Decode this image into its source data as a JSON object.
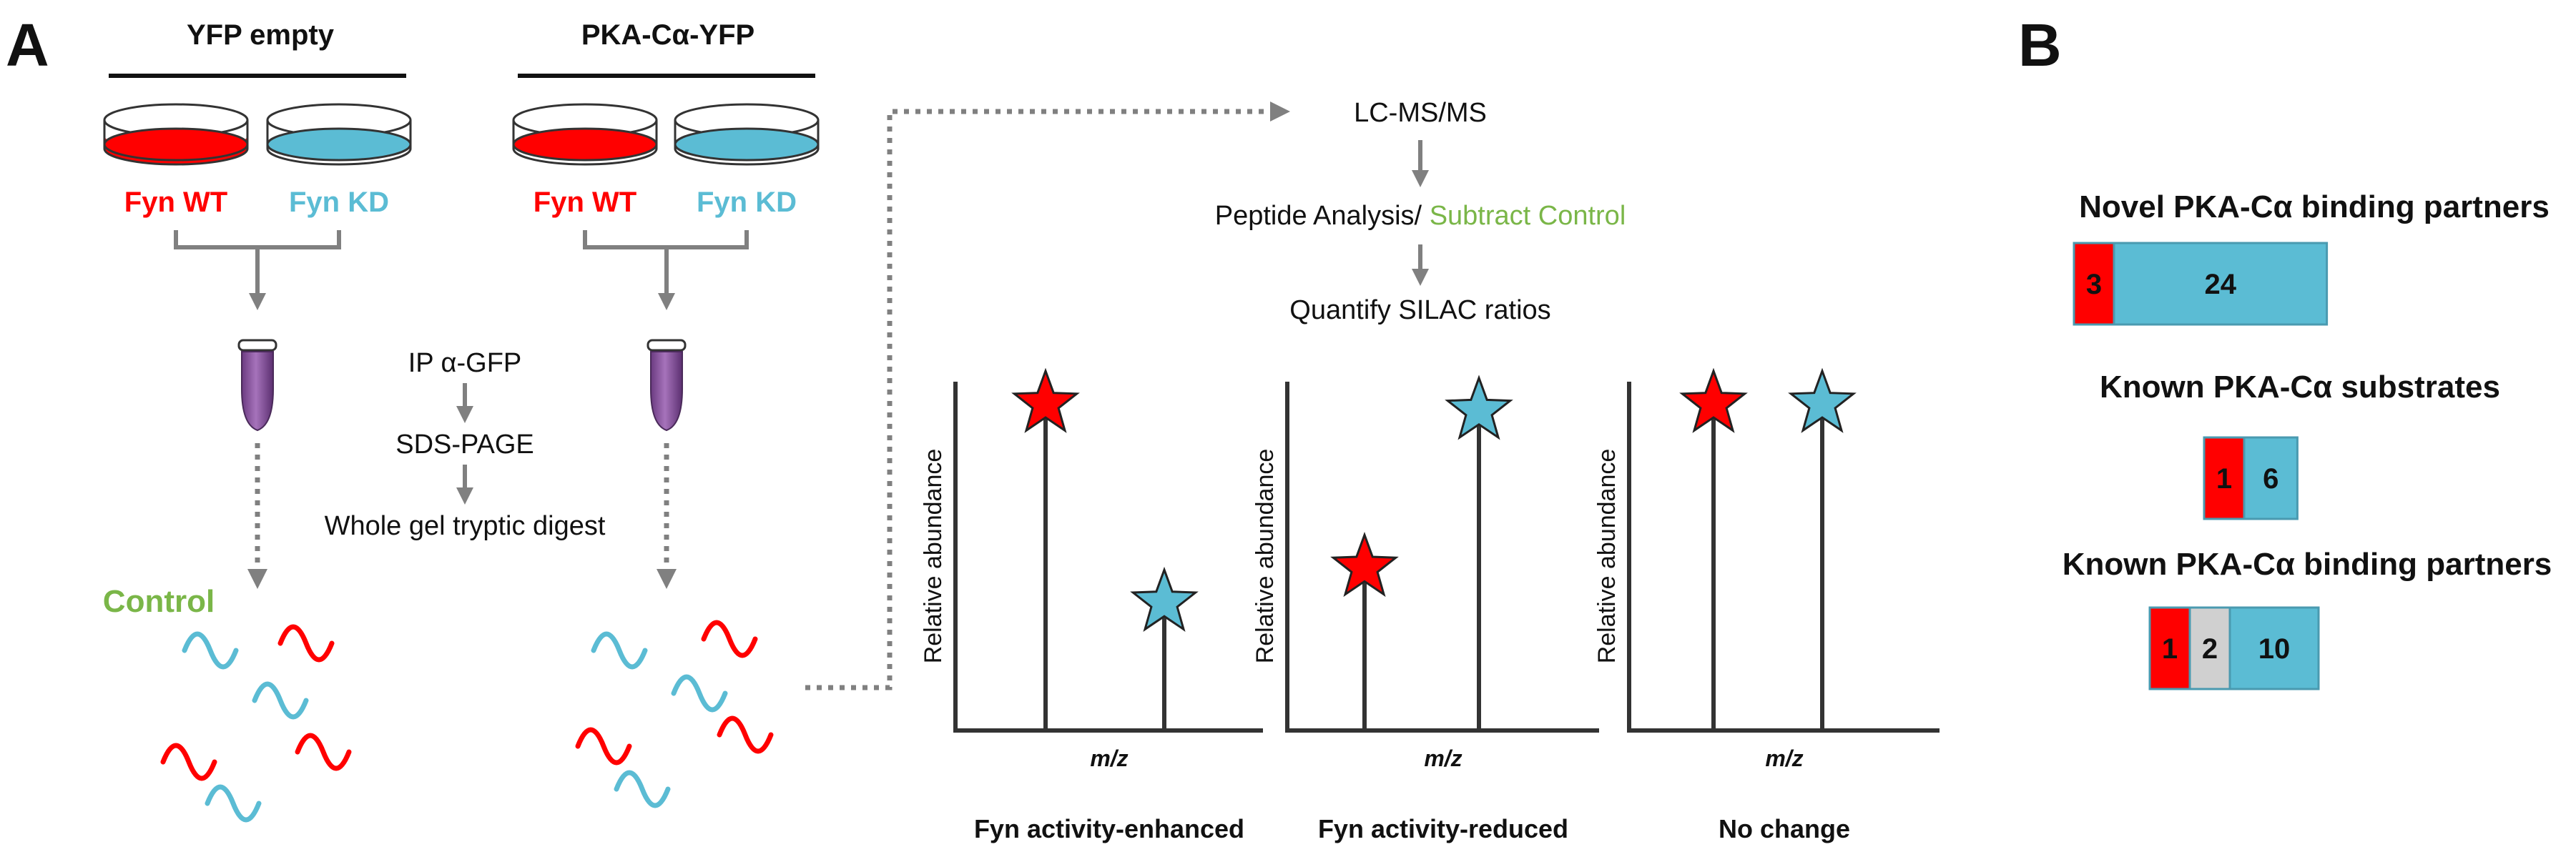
{
  "colors": {
    "red": "#ff0000",
    "blue": "#5bbcd4",
    "green": "#7ab648",
    "purple": "#8e54a0",
    "gray_line": "#808080",
    "dark": "#333333",
    "light_gray": "#d0d0d0"
  },
  "panel_a": {
    "label": "A",
    "groups": [
      {
        "title": "YFP empty",
        "left_label": "Fyn WT",
        "right_label": "Fyn KD"
      },
      {
        "title": "PKA-Cα-YFP",
        "left_label": "Fyn WT",
        "right_label": "Fyn KD"
      }
    ],
    "control_label": "Control",
    "steps_middle": [
      "IP α-GFP",
      "SDS-PAGE",
      "Whole gel tryptic digest"
    ],
    "steps_right": {
      "ms": "LC-MS/MS",
      "analysis_prefix": "Peptide Analysis/ ",
      "analysis_highlight": "Subtract Control",
      "quantify": "Quantify SILAC ratios"
    },
    "spectra": [
      {
        "caption": "Fyn activity-enhanced",
        "ylabel": "Relative abundance",
        "xlabel": "m/z",
        "red_peak": 0.92,
        "blue_peak": 0.35
      },
      {
        "caption": "Fyn activity-reduced",
        "ylabel": "Relative abundance",
        "xlabel": "m/z",
        "red_peak": 0.45,
        "blue_peak": 0.9
      },
      {
        "caption": "No change",
        "ylabel": "Relative abundance",
        "xlabel": "m/z",
        "red_peak": 0.92,
        "blue_peak": 0.92
      }
    ]
  },
  "panel_b": {
    "label": "B",
    "bars": [
      {
        "title": "Novel PKA-Cα binding partners",
        "segments": [
          {
            "value": 3,
            "label": "3",
            "color": "red"
          },
          {
            "value": 24,
            "label": "24",
            "color": "blue"
          }
        ]
      },
      {
        "title": "Known PKA-Cα substrates",
        "segments": [
          {
            "value": 1,
            "label": "1",
            "color": "red"
          },
          {
            "value": 6,
            "label": "6",
            "color": "blue"
          }
        ]
      },
      {
        "title": "Known PKA-Cα binding partners",
        "segments": [
          {
            "value": 1,
            "label": "1",
            "color": "red"
          },
          {
            "value": 2,
            "label": "2",
            "color": "light_gray"
          },
          {
            "value": 10,
            "label": "10",
            "color": "blue"
          }
        ]
      }
    ]
  }
}
